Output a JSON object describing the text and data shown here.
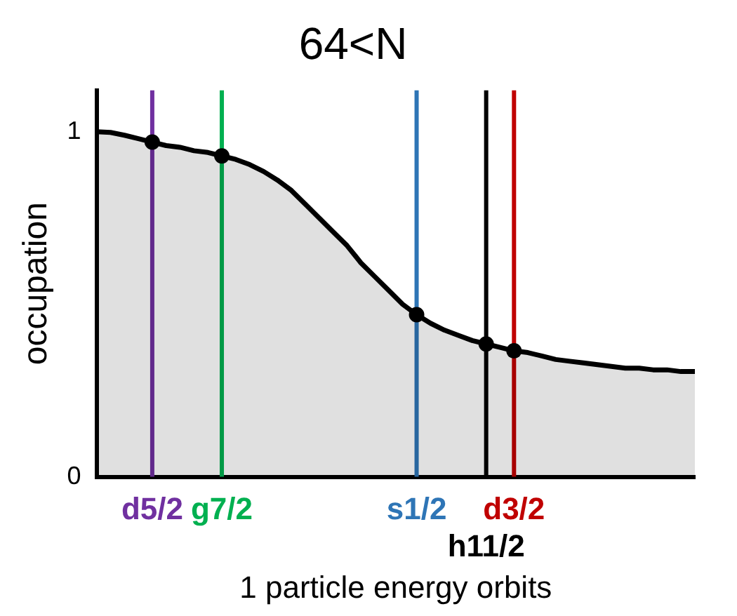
{
  "chart_data": {
    "type": "area",
    "title": "64<N",
    "ylabel": "occupation",
    "xlabel": "1 particle energy orbits",
    "categories": [
      null,
      null,
      null,
      null,
      "d5/2",
      null,
      null,
      null,
      null,
      "g7/2",
      null,
      null,
      null,
      null,
      null,
      null,
      null,
      null,
      null,
      null,
      null,
      null,
      null,
      "s1/2",
      null,
      null,
      null,
      null,
      "h11/2",
      null,
      "d3/2",
      null,
      null,
      null,
      null,
      null,
      null,
      null,
      null,
      null,
      null,
      null,
      null,
      null
    ],
    "series": [
      {
        "color": "#000000",
        "values": [
          1.0,
          0.998,
          0.99,
          0.98,
          0.97,
          0.96,
          0.955,
          0.945,
          0.94,
          0.93,
          0.92,
          0.905,
          0.885,
          0.86,
          0.83,
          0.79,
          0.75,
          0.71,
          0.67,
          0.62,
          0.58,
          0.54,
          0.5,
          0.47,
          0.445,
          0.425,
          0.41,
          0.395,
          0.385,
          0.375,
          0.365,
          0.36,
          0.35,
          0.34,
          0.335,
          0.33,
          0.325,
          0.32,
          0.315,
          0.315,
          0.31,
          0.31,
          0.305,
          0.305
        ]
      },
      {
        "type": "scatter",
        "color": "#000000",
        "marker": "circle",
        "x": [
          "d5/2",
          "g7/2",
          "s1/2",
          "h11/2",
          "d3/2"
        ],
        "values": [
          0.97,
          0.93,
          0.47,
          0.385,
          0.365
        ]
      }
    ],
    "ylim": [
      0,
      1.12
    ],
    "yticks": [
      0,
      1
    ],
    "grid": false,
    "legend": false,
    "ref_lines": [
      {
        "axis": "x",
        "value": "d5/2",
        "color": "#7030a0"
      },
      {
        "axis": "x",
        "value": "g7/2",
        "color": "#00b050"
      },
      {
        "axis": "x",
        "value": "s1/2",
        "color": "#2e75b6"
      },
      {
        "axis": "x",
        "value": "h11/2",
        "color": "#000000"
      },
      {
        "axis": "x",
        "value": "d3/2",
        "color": "#c00000"
      }
    ]
  }
}
